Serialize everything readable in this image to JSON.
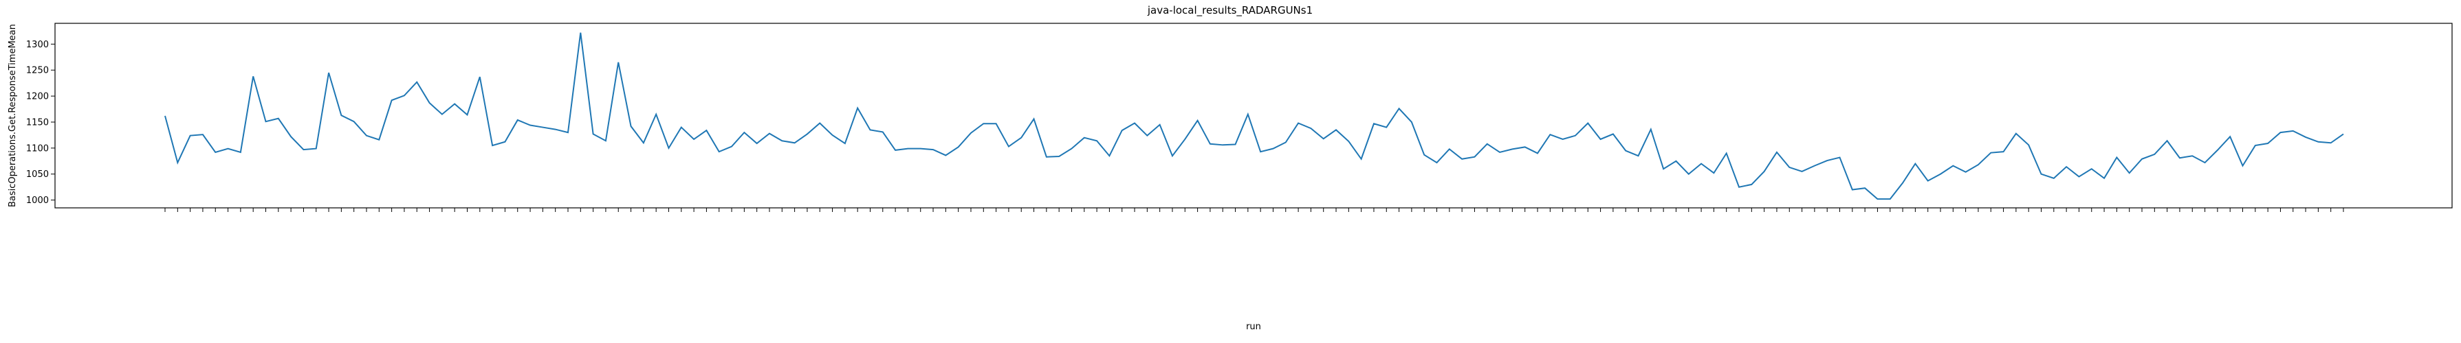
{
  "chart_data": {
    "type": "line",
    "title": "java-local_results_RADARGUNs1",
    "xlabel": "run",
    "ylabel": "BasicOperations.Get.ResponseTimeMean",
    "ylim": [
      985,
      1340
    ],
    "yticks": [
      1000,
      1050,
      1100,
      1150,
      1200,
      1250,
      1300
    ],
    "grid": false,
    "legend": "none",
    "line_color": "#1f77b4",
    "series": [
      {
        "values": [
          1162,
          1072,
          1124,
          1126,
          1092,
          1099,
          1092,
          1238,
          1151,
          1157,
          1122,
          1097,
          1099,
          1245,
          1163,
          1151,
          1124,
          1116,
          1192,
          1201,
          1227,
          1187,
          1165,
          1185,
          1164,
          1237,
          1105,
          1112,
          1154,
          1144,
          1140,
          1136,
          1130,
          1322,
          1127,
          1114,
          1265,
          1142,
          1110,
          1165,
          1100,
          1140,
          1117,
          1134,
          1093,
          1103,
          1130,
          1109,
          1128,
          1114,
          1110,
          1127,
          1148,
          1125,
          1109,
          1177,
          1135,
          1131,
          1096,
          1099,
          1099,
          1097,
          1086,
          1102,
          1129,
          1147,
          1147,
          1103,
          1120,
          1156,
          1083,
          1084,
          1099,
          1120,
          1114,
          1085,
          1134,
          1148,
          1124,
          1145,
          1085,
          1117,
          1153,
          1108,
          1106,
          1107,
          1165,
          1093,
          1099,
          1111,
          1148,
          1138,
          1118,
          1135,
          1113,
          1079,
          1147,
          1140,
          1176,
          1150,
          1087,
          1072,
          1098,
          1079,
          1083,
          1108,
          1092,
          1098,
          1102,
          1090,
          1126,
          1117,
          1124,
          1148,
          1117,
          1127,
          1095,
          1085,
          1136,
          1060,
          1075,
          1050,
          1070,
          1052,
          1090,
          1025,
          1030,
          1055,
          1092,
          1063,
          1055,
          1066,
          1076,
          1082,
          1020,
          1023,
          1002,
          1002,
          1033,
          1070,
          1037,
          1050,
          1066,
          1054,
          1068,
          1091,
          1093,
          1128,
          1106,
          1050,
          1042,
          1064,
          1045,
          1060,
          1042,
          1082,
          1052,
          1079,
          1088,
          1114,
          1081,
          1085,
          1072,
          1096,
          1122,
          1066,
          1105,
          1109,
          1130,
          1133,
          1121,
          1112,
          1110,
          1127
        ]
      }
    ]
  }
}
